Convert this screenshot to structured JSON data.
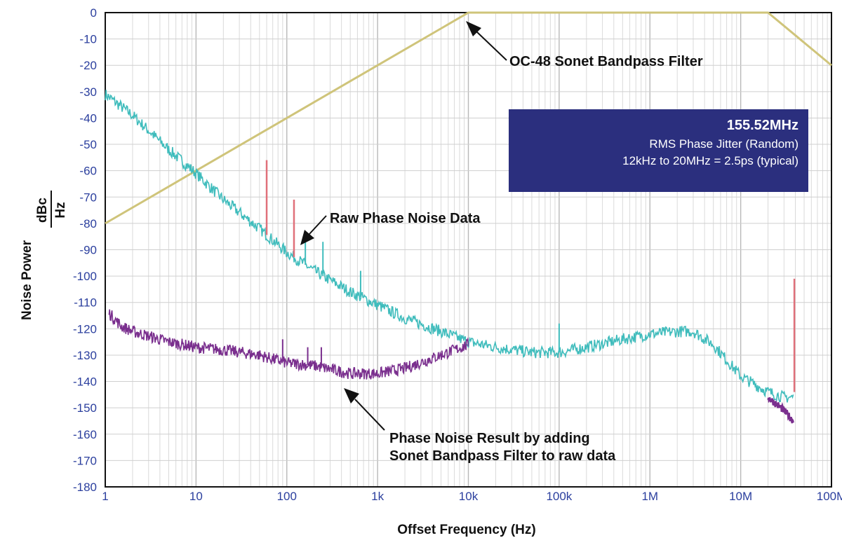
{
  "chart_data": {
    "type": "line",
    "x_scale": "log",
    "xlim": [
      1,
      100000000
    ],
    "ylim": [
      -180,
      0
    ],
    "grid": true,
    "xlabel": "Offset Frequency (Hz)",
    "ylabel_text": "Noise Power",
    "ylabel_unit_top": "dBc",
    "ylabel_unit_bottom": "Hz",
    "x_tick_labels": [
      "1",
      "10",
      "100",
      "1k",
      "10k",
      "100k",
      "1M",
      "10M",
      "100M"
    ],
    "y_tick_labels": [
      "0",
      "-10",
      "-20",
      "-30",
      "-40",
      "-50",
      "-60",
      "-70",
      "-80",
      "-90",
      "-100",
      "-110",
      "-120",
      "-130",
      "-140",
      "-150",
      "-160",
      "-170",
      "-180"
    ],
    "series": [
      {
        "color": "#cfc47a",
        "x": [
          1,
          10000,
          20000000,
          100000000
        ],
        "y": [
          -80,
          0,
          0,
          -20
        ]
      },
      {
        "color": "#3fbcbc",
        "x": [
          1,
          2,
          5,
          10,
          20,
          50,
          100,
          200,
          500,
          1000,
          2000,
          5000,
          10000,
          20000,
          50000,
          100000,
          200000,
          500000,
          1000000,
          2000000,
          3000000,
          5000000,
          10000000,
          20000000,
          30000000,
          38000000
        ],
        "y": [
          -31,
          -39,
          -52,
          -61,
          -71,
          -82,
          -91,
          -98,
          -106,
          -111,
          -116,
          -121,
          -125,
          -127,
          -129,
          -129,
          -127,
          -124,
          -122,
          -121,
          -121,
          -126,
          -138,
          -144,
          -146,
          -146
        ],
        "spurs": [
          {
            "x": 160,
            "y": -87
          },
          {
            "x": 250,
            "y": -87
          },
          {
            "x": 650,
            "y": -98
          },
          {
            "x": 100000,
            "y": -118
          }
        ]
      },
      {
        "color": "#7a2f8e",
        "x": [
          1.1,
          1.5,
          2,
          5,
          10,
          20,
          50,
          100,
          200,
          500,
          1000,
          2000,
          5000,
          10000
        ],
        "y": [
          -114,
          -119,
          -121,
          -125,
          -127,
          -128,
          -130,
          -133,
          -134,
          -137,
          -137,
          -135,
          -130,
          -126
        ],
        "tail_x": [
          20000000,
          30000000,
          38000000
        ],
        "tail_y": [
          -146,
          -151,
          -155
        ],
        "spurs": [
          {
            "x": 90,
            "y": -124
          },
          {
            "x": 170,
            "y": -127
          },
          {
            "x": 240,
            "y": -127
          }
        ]
      },
      {
        "color": "#e0707a",
        "spurs": [
          {
            "x": 60,
            "y": -56
          },
          {
            "x": 120,
            "y": -71
          },
          {
            "x": 39000000,
            "y": -101
          }
        ]
      }
    ],
    "annotations": [
      "OC-48 Sonet Bandpass Filter",
      "Raw Phase Noise Data",
      "Phase Noise Result by adding",
      "Sonet Bandpass Filter to raw data"
    ]
  },
  "info_box": {
    "title": "155.52MHz",
    "line2": "RMS Phase Jitter (Random)",
    "line3": "12kHz to 20MHz = 2.5ps (typical)",
    "background": "#2b2f7e"
  }
}
